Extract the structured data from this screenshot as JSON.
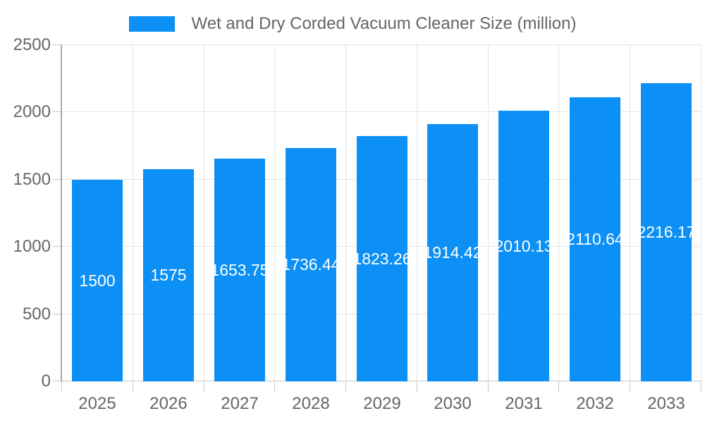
{
  "chart_data": {
    "type": "bar",
    "title": "Wet and Dry Corded Vacuum Cleaner Size (million)",
    "categories": [
      "2025",
      "2026",
      "2027",
      "2028",
      "2029",
      "2030",
      "2031",
      "2032",
      "2033"
    ],
    "values": [
      1500,
      1575,
      1653.75,
      1736.44,
      1823.26,
      1914.42,
      2010.13,
      2110.64,
      2216.17
    ],
    "value_labels": [
      "1500",
      "1575",
      "1653.75",
      "1736.44",
      "1823.26",
      "1914.42",
      "2010.13",
      "2110.64",
      "2216.17"
    ],
    "xlabel": "",
    "ylabel": "",
    "ylim": [
      0,
      2500
    ],
    "y_ticks": [
      0,
      500,
      1000,
      1500,
      2000,
      2500
    ],
    "grid": true,
    "legend_position": "top",
    "colors": {
      "bar": "#0c90f6",
      "value_label": "#ffffff",
      "axis_text": "#666666",
      "grid_line": "#e4e4e4",
      "baseline": "#c6c6c6",
      "tick": "#c6c6c6",
      "axis_line": "#a8a8a8",
      "background": "#ffffff"
    }
  }
}
